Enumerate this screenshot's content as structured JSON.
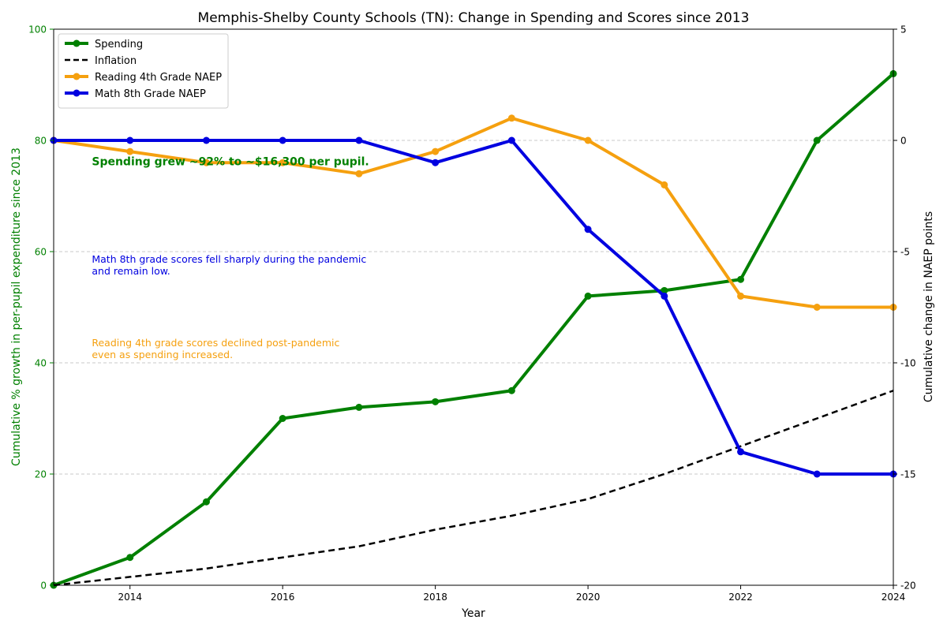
{
  "chart_data": {
    "type": "line",
    "title": "Memphis-Shelby County Schools (TN): Change in Spending and Scores since 2013",
    "xlabel": "Year",
    "ylabel_left": "Cumulative % growth in per-pupil expenditure since 2013",
    "ylabel_right": "Cumulative change in NAEP points",
    "xlim": [
      2013,
      2024
    ],
    "ylim_left": [
      0,
      100
    ],
    "ylim_right": [
      -20,
      5
    ],
    "x_ticks": [
      2014,
      2016,
      2018,
      2020,
      2022,
      2024
    ],
    "y_ticks_left": [
      0,
      20,
      40,
      60,
      80,
      100
    ],
    "y_ticks_right": [
      -20,
      -15,
      -10,
      -5,
      0,
      5
    ],
    "grid": "horizontal dashed (left axis)",
    "legend_position": "top-left",
    "colors": {
      "spending": "#008000",
      "inflation": "#000000",
      "reading": "#f5a00f",
      "math": "#0000e0"
    },
    "series": [
      {
        "name": "Spending",
        "axis": "left",
        "style": "solid-markers",
        "color": "#008000",
        "x": [
          2013,
          2014,
          2015,
          2016,
          2017,
          2018,
          2019,
          2020,
          2021,
          2022,
          2023,
          2024
        ],
        "values": [
          0,
          5,
          15,
          30,
          32,
          33,
          35,
          52,
          53,
          55,
          80,
          92
        ]
      },
      {
        "name": "Inflation",
        "axis": "left",
        "style": "dashed",
        "color": "#000000",
        "x": [
          2013,
          2014,
          2015,
          2016,
          2017,
          2018,
          2019,
          2020,
          2021,
          2022,
          2023,
          2024
        ],
        "values": [
          0,
          1.5,
          3,
          5,
          7,
          10,
          12.5,
          15.5,
          20,
          25,
          30,
          35
        ]
      },
      {
        "name": "Reading 4th Grade NAEP",
        "axis": "right",
        "style": "solid-markers",
        "color": "#f5a00f",
        "x": [
          2013,
          2014,
          2015,
          2016,
          2017,
          2018,
          2019,
          2020,
          2021,
          2022,
          2023,
          2024
        ],
        "values": [
          0,
          -0.5,
          -1,
          -1,
          -1.5,
          -0.5,
          1,
          0,
          -2,
          -7,
          -7.5,
          -7.5
        ]
      },
      {
        "name": "Math 8th Grade NAEP",
        "axis": "right",
        "style": "solid-markers",
        "color": "#0000e0",
        "x": [
          2013,
          2014,
          2015,
          2016,
          2017,
          2018,
          2019,
          2020,
          2021,
          2022,
          2023,
          2024
        ],
        "values": [
          0,
          0,
          0,
          0,
          0,
          -1,
          0,
          -4,
          -7,
          -14,
          -15,
          -15
        ]
      }
    ],
    "annotations": [
      {
        "id": "spending",
        "lines": [
          "Spending grew ~92% to ~$16,300 per pupil."
        ],
        "color": "#008000",
        "bold": true,
        "x": 2013.5,
        "y_left": 75.5
      },
      {
        "id": "math",
        "lines": [
          "Math 8th grade scores fell sharply during the pandemic",
          "and remain low."
        ],
        "color": "#0000e0",
        "bold": false,
        "x": 2013.5,
        "y_left": 58
      },
      {
        "id": "reading",
        "lines": [
          "Reading 4th grade scores declined post-pandemic",
          "even as spending increased."
        ],
        "color": "#f5a00f",
        "bold": false,
        "x": 2013.5,
        "y_left": 43
      }
    ]
  }
}
